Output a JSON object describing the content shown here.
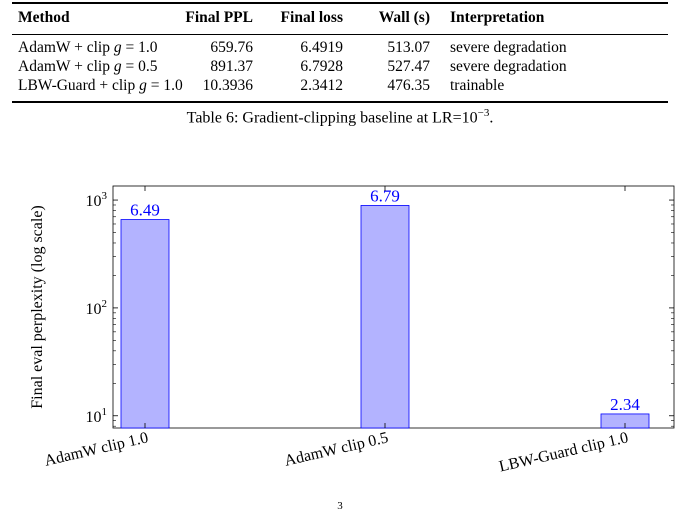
{
  "table": {
    "headers": [
      "Method",
      "Final PPL",
      "Final loss",
      "Wall (s)",
      "Interpretation"
    ],
    "rows": [
      {
        "method_prefix": "AdamW + clip ",
        "g": "g",
        "method_suffix": " = 1.0",
        "ppl": "659.76",
        "loss": "6.4919",
        "wall": "513.07",
        "interp": "severe degradation"
      },
      {
        "method_prefix": "AdamW + clip ",
        "g": "g",
        "method_suffix": " = 0.5",
        "ppl": "891.37",
        "loss": "6.7928",
        "wall": "527.47",
        "interp": "severe degradation"
      },
      {
        "method_prefix": "LBW-Guard + clip ",
        "g": "g",
        "method_suffix": " = 1.0",
        "ppl": "10.3936",
        "loss": "2.3412",
        "wall": "476.35",
        "interp": "trainable"
      }
    ],
    "caption_prefix": "Table 6: Gradient-clipping baseline at LR=10",
    "caption_exp": "−3",
    "caption_suffix": "."
  },
  "figure": {
    "caption_partial": "3"
  },
  "chart_data": {
    "type": "bar",
    "ylabel": "Final eval perplexity (log scale)",
    "yscale": "log",
    "ylim": [
      7.7,
      1350
    ],
    "yticks": [
      {
        "value": 10,
        "label_base": "10",
        "label_exp": "1"
      },
      {
        "value": 100,
        "label_base": "10",
        "label_exp": "2"
      },
      {
        "value": 1000,
        "label_base": "10",
        "label_exp": "3"
      }
    ],
    "categories": [
      "AdamW clip 1.0",
      "AdamW clip 0.5",
      "LBW-Guard clip 1.0"
    ],
    "values": [
      659.76,
      891.37,
      10.3936
    ],
    "bar_labels": [
      "6.49",
      "6.79",
      "2.34"
    ],
    "colors": {
      "bar_fill": "#b3b3ff",
      "bar_stroke": "#0000ff",
      "label": "#0000ff"
    }
  }
}
